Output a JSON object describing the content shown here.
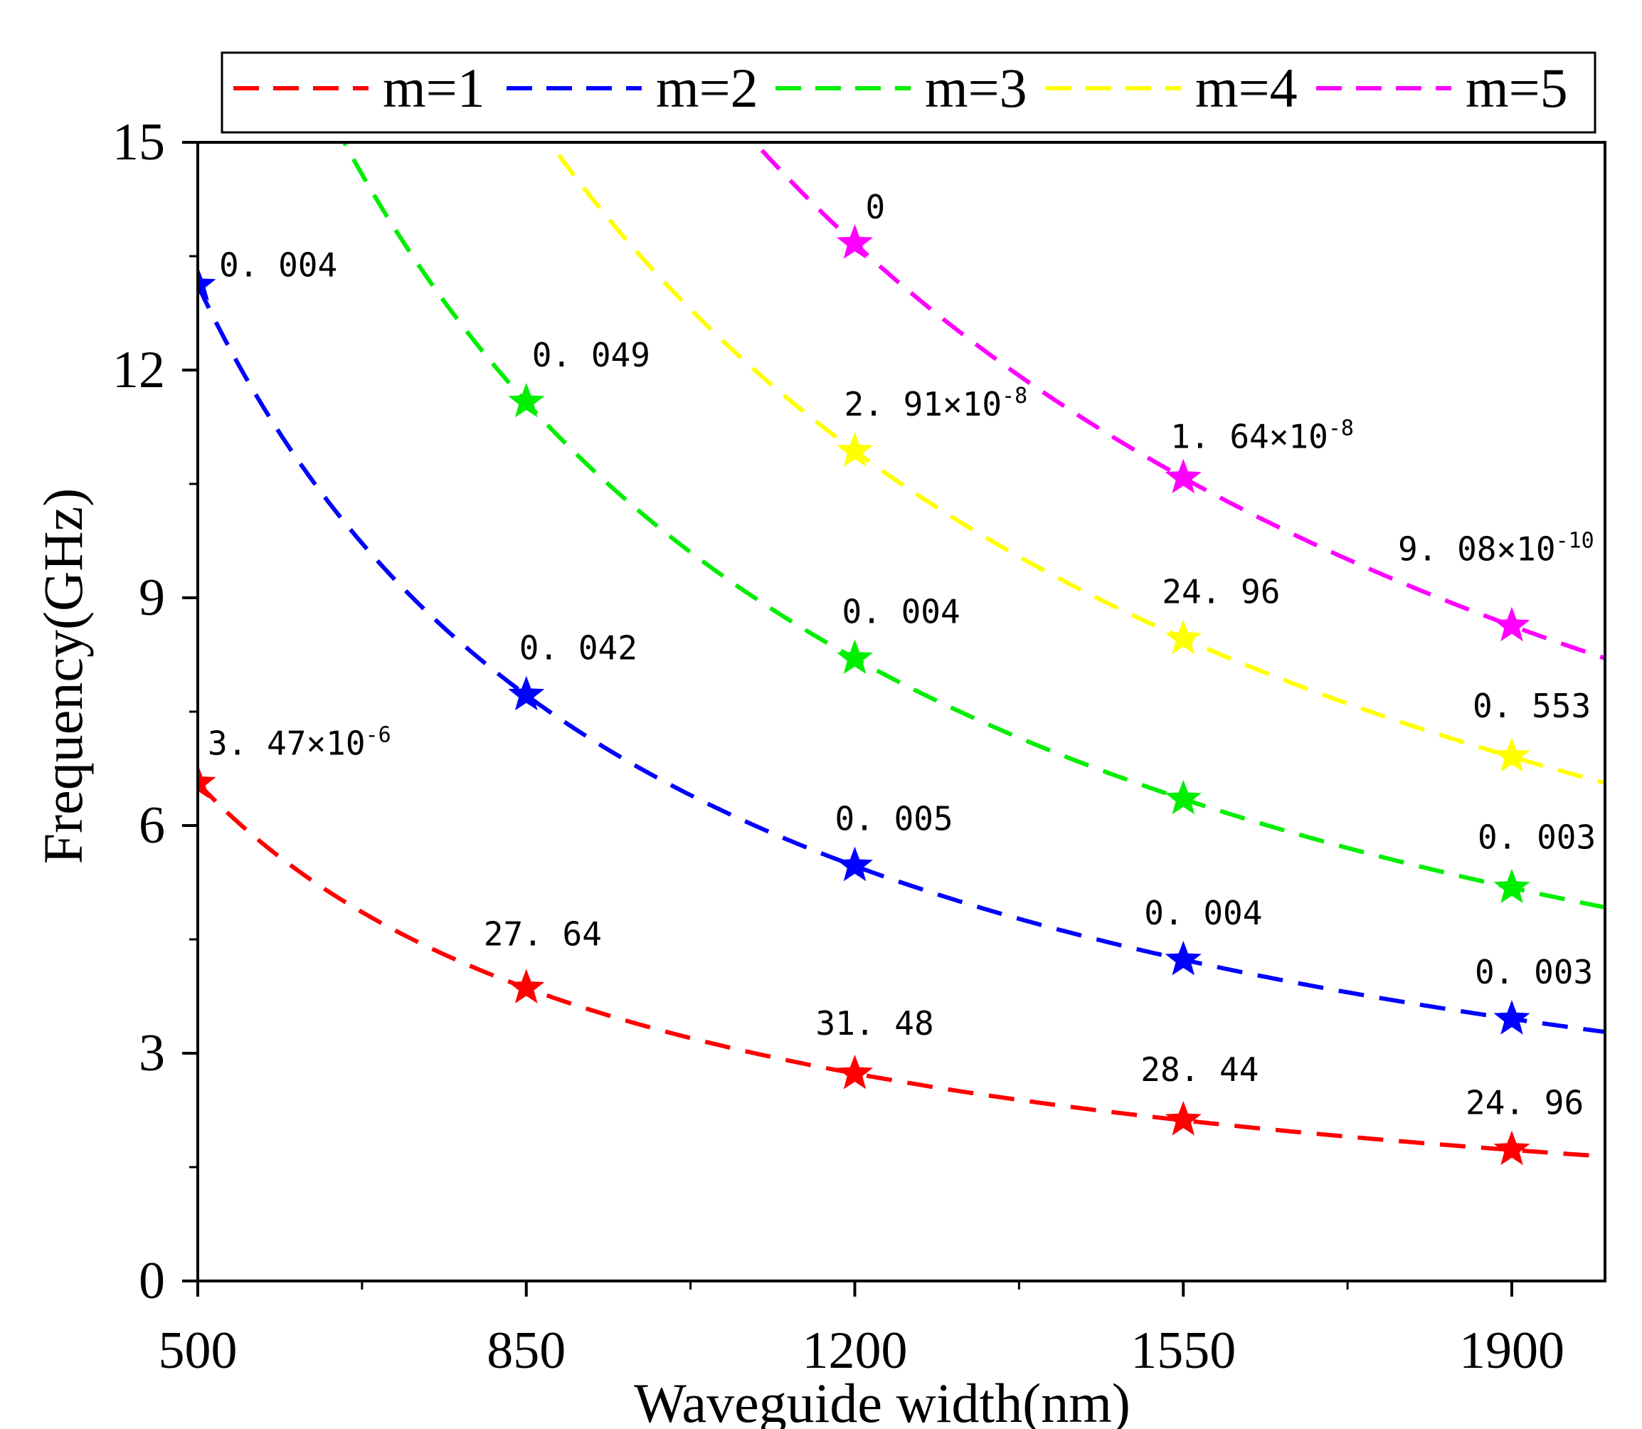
{
  "chart_data": {
    "type": "line",
    "title": "",
    "xlabel": "Waveguide width(nm)",
    "ylabel": "Frequency(GHz)",
    "xlim": [
      500,
      1980
    ],
    "ylim": [
      0,
      15
    ],
    "xticks": [
      "500",
      "850",
      "1200",
      "1550",
      "1900"
    ],
    "yticks": [
      "0",
      "3",
      "6",
      "9",
      "12",
      "15"
    ],
    "grid": false,
    "legend_position": "top",
    "series": [
      {
        "name": "m=1",
        "color": "#ff0000",
        "curve_k": 3280,
        "points": [
          {
            "x": 500,
            "y": 6.56,
            "label": "3. 47×10",
            "sup": "-6"
          },
          {
            "x": 850,
            "y": 3.86,
            "label": "27. 64"
          },
          {
            "x": 1200,
            "y": 2.73,
            "label": "31. 48"
          },
          {
            "x": 1550,
            "y": 2.12,
            "label": "28. 44"
          },
          {
            "x": 1900,
            "y": 1.73,
            "label": "24. 96"
          }
        ]
      },
      {
        "name": "m=2",
        "color": "#0000ff",
        "curve_k": 6560,
        "points": [
          {
            "x": 500,
            "y": 13.12,
            "label": "0. 004"
          },
          {
            "x": 850,
            "y": 7.72,
            "label": "0. 042"
          },
          {
            "x": 1200,
            "y": 5.47,
            "label": "0. 005"
          },
          {
            "x": 1550,
            "y": 4.23,
            "label": "0. 004"
          },
          {
            "x": 1900,
            "y": 3.45,
            "label": "0. 003"
          }
        ]
      },
      {
        "name": "m=3",
        "color": "#00ee00",
        "curve_k": 9840,
        "points": [
          {
            "x": 850,
            "y": 11.58,
            "label": "0. 049"
          },
          {
            "x": 1200,
            "y": 8.2,
            "label": "0. 004"
          },
          {
            "x": 1550,
            "y": 6.35,
            "label": ""
          },
          {
            "x": 1900,
            "y": 5.18,
            "label": "0. 003"
          }
        ]
      },
      {
        "name": "m=4",
        "color": "#ffff00",
        "curve_k": 13120,
        "points": [
          {
            "x": 1200,
            "y": 10.93,
            "label": "2. 91×10",
            "sup": "-8"
          },
          {
            "x": 1550,
            "y": 8.46,
            "label": "24. 96"
          },
          {
            "x": 1900,
            "y": 6.91,
            "label": "0. 553"
          }
        ]
      },
      {
        "name": "m=5",
        "color": "#ff00ff",
        "curve_k": 16400,
        "points": [
          {
            "x": 1200,
            "y": 13.67,
            "label": "0"
          },
          {
            "x": 1550,
            "y": 10.58,
            "label": "1. 64×10",
            "sup": "-8"
          },
          {
            "x": 1900,
            "y": 8.63,
            "label": "9. 08×10",
            "sup": "-10"
          }
        ]
      }
    ]
  }
}
